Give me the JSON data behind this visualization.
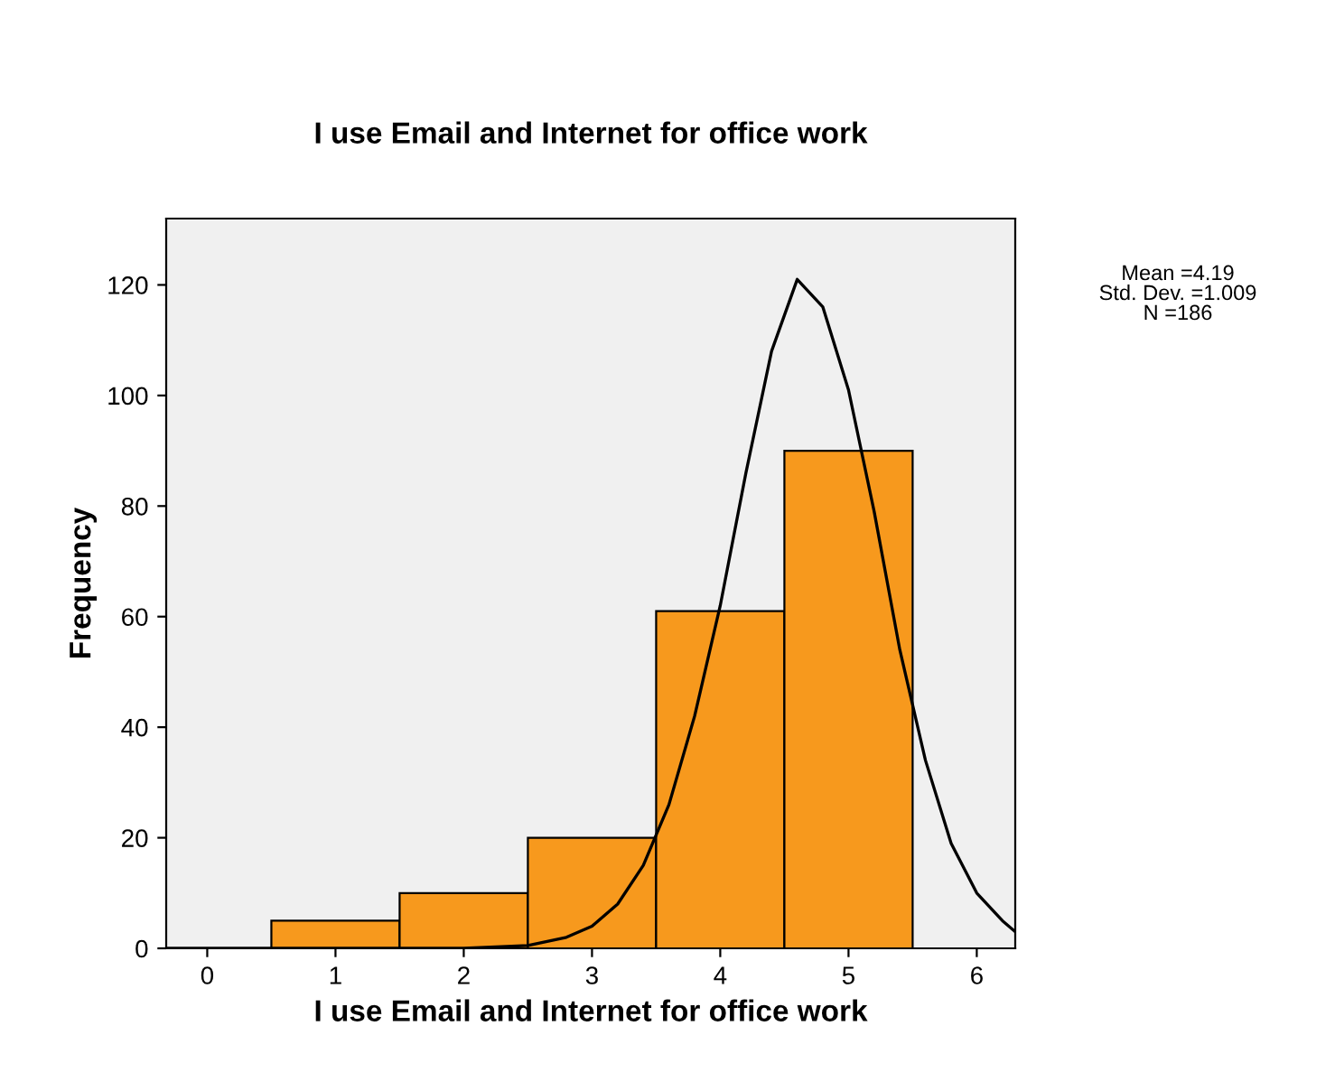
{
  "chart_data": {
    "type": "histogram",
    "title": "I use Email and Internet for office work",
    "xlabel": "I use Email and Internet for office work",
    "ylabel": "Frequency",
    "bins": [
      0.5,
      1.5,
      2.5,
      3.5,
      4.5,
      5.5
    ],
    "values": [
      5,
      10,
      20,
      61,
      90
    ],
    "color": "#f7991d",
    "series": [
      {
        "type": "line",
        "color": "#000000",
        "x": [
          -0.32,
          0.5,
          1.5,
          2.0,
          2.5,
          2.8,
          3.0,
          3.2,
          3.4,
          3.6,
          3.8,
          4.0,
          4.2,
          4.4,
          4.6,
          4.8,
          5.0,
          5.2,
          5.4,
          5.6,
          5.8,
          6.0,
          6.2,
          6.3
        ],
        "values": [
          0,
          0,
          0,
          0,
          0.5,
          2,
          4,
          8,
          15,
          26,
          42,
          62,
          86,
          108,
          121,
          116,
          101,
          79,
          54,
          34,
          19,
          10,
          5,
          3
        ]
      }
    ],
    "xlim": [
      -0.32,
      6.3
    ],
    "ylim": [
      0,
      132
    ],
    "xticks": [
      0,
      1,
      2,
      3,
      4,
      5,
      6
    ],
    "yticks": [
      0,
      20,
      40,
      60,
      80,
      100,
      120
    ],
    "grid": false,
    "annotations": [
      "Mean =4.19",
      "Std. Dev. =1.009",
      "N =186"
    ]
  }
}
